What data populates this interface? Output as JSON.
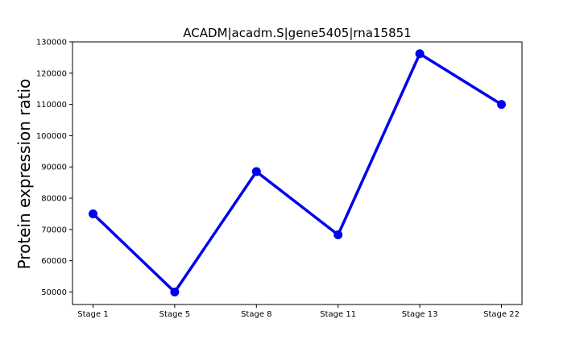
{
  "chart_data": {
    "type": "line",
    "title": "ACADM|acadm.S|gene5405|rna15851",
    "xlabel": "",
    "ylabel": "Protein expression ratio",
    "categories": [
      "Stage 1",
      "Stage 5",
      "Stage 8",
      "Stage 11",
      "Stage 13",
      "Stage 22"
    ],
    "values": [
      75000,
      50000,
      88500,
      68300,
      126200,
      110000
    ],
    "ylim": [
      46000,
      130000
    ],
    "yticks": [
      50000,
      60000,
      70000,
      80000,
      90000,
      100000,
      110000,
      120000,
      130000
    ],
    "ytick_labels": [
      "50000",
      "60000",
      "70000",
      "80000",
      "90000",
      "100000",
      "110000",
      "120000",
      "130000"
    ],
    "grid": false,
    "legend": "none",
    "color": "#0000ee"
  }
}
